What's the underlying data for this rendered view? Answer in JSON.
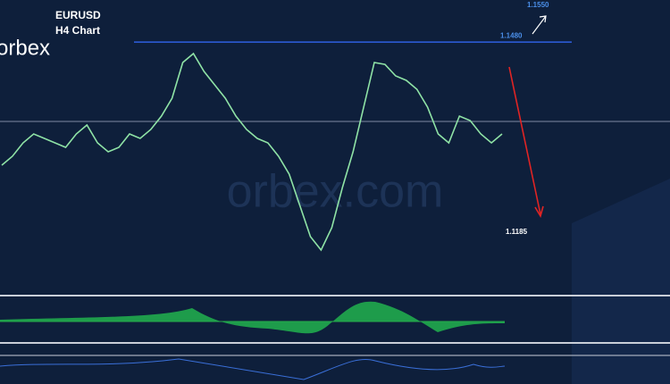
{
  "chart_data": {
    "type": "line",
    "title": "EURUSD",
    "subtitle": "H4 Chart",
    "logo": "orbex",
    "watermark": "orbex.com",
    "color": "#8fe3a6",
    "values": [
      1.1287,
      1.1301,
      1.1322,
      1.1336,
      1.1329,
      1.1322,
      1.1315,
      1.1336,
      1.135,
      1.1322,
      1.1308,
      1.1315,
      1.1336,
      1.1329,
      1.1343,
      1.1364,
      1.1392,
      1.1448,
      1.1462,
      1.1434,
      1.1413,
      1.1392,
      1.1364,
      1.1343,
      1.1329,
      1.1322,
      1.1301,
      1.1273,
      1.1224,
      1.1175,
      1.1154,
      1.1189,
      1.1252,
      1.1308,
      1.1378,
      1.1448,
      1.1445,
      1.1427,
      1.142,
      1.1406,
      1.1378,
      1.1336,
      1.1322,
      1.1364,
      1.1357,
      1.1336,
      1.1322,
      1.1336
    ],
    "ylim": [
      1.1098,
      1.1546
    ],
    "levels": [
      {
        "value": 1.148,
        "label": "1.1480"
      }
    ],
    "annotations": [
      "1.1550",
      "1.1185"
    ]
  }
}
